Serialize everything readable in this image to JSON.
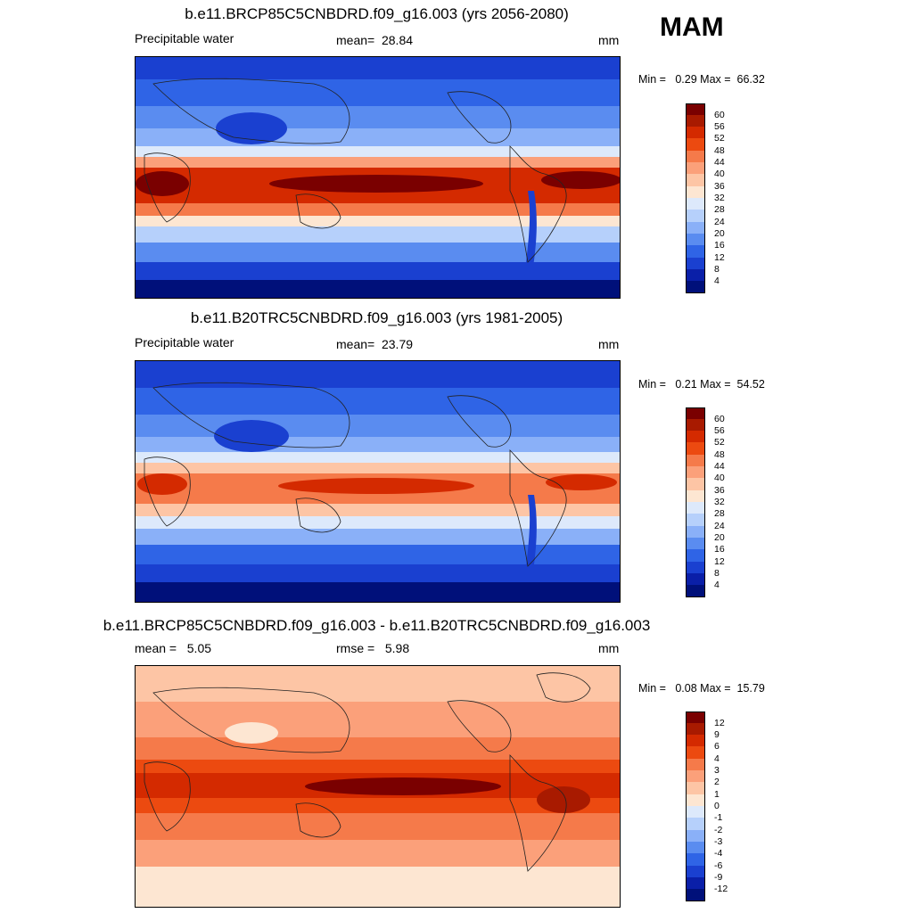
{
  "season": "MAM",
  "panels": [
    {
      "title": "b.e11.BRCP85C5CNBDRD.f09_g16.003 (yrs 2056-2080)",
      "left_label": "Precipitable water",
      "stat1_label": "mean=",
      "stat1_value": "28.84",
      "stat2_label": "",
      "stat2_value": "",
      "units": "mm",
      "min_label": "Min =",
      "min_value": "0.29",
      "max_label": "Max =",
      "max_value": "66.32",
      "colorbar": {
        "labels": [
          "60",
          "56",
          "52",
          "48",
          "44",
          "40",
          "36",
          "32",
          "28",
          "24",
          "20",
          "16",
          "12",
          "8",
          "4"
        ],
        "colors": [
          "#7a0000",
          "#a81a00",
          "#d42a00",
          "#ec4a10",
          "#f57a4a",
          "#fba07a",
          "#fdc5a5",
          "#fde6d2",
          "#dde9fb",
          "#b6d0fb",
          "#8ab0f8",
          "#5a8cf0",
          "#2f64e6",
          "#1a40d0",
          "#0a1fa8",
          "#00107a"
        ]
      }
    },
    {
      "title": "b.e11.B20TRC5CNBDRD.f09_g16.003 (yrs 1981-2005)",
      "left_label": "Precipitable water",
      "stat1_label": "mean=",
      "stat1_value": "23.79",
      "stat2_label": "",
      "stat2_value": "",
      "units": "mm",
      "min_label": "Min =",
      "min_value": "0.21",
      "max_label": "Max =",
      "max_value": "54.52",
      "colorbar": {
        "labels": [
          "60",
          "56",
          "52",
          "48",
          "44",
          "40",
          "36",
          "32",
          "28",
          "24",
          "20",
          "16",
          "12",
          "8",
          "4"
        ],
        "colors": [
          "#7a0000",
          "#a81a00",
          "#d42a00",
          "#ec4a10",
          "#f57a4a",
          "#fba07a",
          "#fdc5a5",
          "#fde6d2",
          "#dde9fb",
          "#b6d0fb",
          "#8ab0f8",
          "#5a8cf0",
          "#2f64e6",
          "#1a40d0",
          "#0a1fa8",
          "#00107a"
        ]
      }
    },
    {
      "title": "b.e11.BRCP85C5CNBDRD.f09_g16.003 - b.e11.B20TRC5CNBDRD.f09_g16.003",
      "left_label": "mean =",
      "left_value": "5.05",
      "stat1_label": "rmse =",
      "stat1_value": "5.98",
      "stat2_label": "",
      "stat2_value": "",
      "units": "mm",
      "min_label": "Min =",
      "min_value": "0.08",
      "max_label": "Max =",
      "max_value": "15.79",
      "colorbar": {
        "labels": [
          "12",
          "9",
          "6",
          "4",
          "3",
          "2",
          "1",
          "0",
          "-1",
          "-2",
          "-3",
          "-4",
          "-6",
          "-9",
          "-12"
        ],
        "colors": [
          "#7a0000",
          "#a81a00",
          "#d42a00",
          "#ec4a10",
          "#f57a4a",
          "#fba07a",
          "#fdc5a5",
          "#fde6d2",
          "#dde9fb",
          "#b6d0fb",
          "#8ab0f8",
          "#5a8cf0",
          "#2f64e6",
          "#1a40d0",
          "#0a1fa8",
          "#00107a"
        ]
      }
    }
  ]
}
